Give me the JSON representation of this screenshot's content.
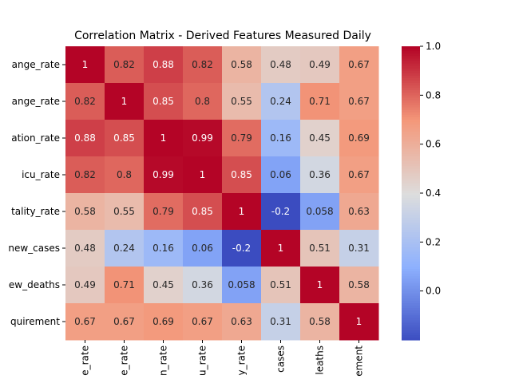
{
  "chart_data": {
    "type": "heatmap",
    "title": "Correlation Matrix - Derived Features Measured Daily",
    "row_labels": [
      "ange_rate",
      "ange_rate",
      "ation_rate",
      "icu_rate",
      "tality_rate",
      "new_cases",
      "ew_deaths",
      "quirement"
    ],
    "col_labels": [
      "e_rate",
      "e_rate",
      "n_rate",
      "u_rate",
      "y_rate",
      "cases",
      "leaths",
      "ement"
    ],
    "values": [
      [
        1,
        0.82,
        0.88,
        0.82,
        0.58,
        0.48,
        0.49,
        0.67
      ],
      [
        0.82,
        1,
        0.85,
        0.8,
        0.55,
        0.24,
        0.71,
        0.67
      ],
      [
        0.88,
        0.85,
        1,
        0.99,
        0.79,
        0.16,
        0.45,
        0.69
      ],
      [
        0.82,
        0.8,
        0.99,
        1,
        0.85,
        0.06,
        0.36,
        0.67
      ],
      [
        0.58,
        0.55,
        0.79,
        0.85,
        1,
        -0.2,
        0.058,
        0.63
      ],
      [
        0.48,
        0.24,
        0.16,
        0.06,
        -0.2,
        1,
        0.51,
        0.31
      ],
      [
        0.49,
        0.71,
        0.45,
        0.36,
        0.058,
        0.51,
        1,
        0.58
      ],
      [
        0.67,
        0.67,
        0.69,
        0.67,
        0.63,
        0.31,
        0.58,
        1
      ]
    ],
    "colormap": "coolwarm",
    "vmin": -0.2,
    "vmax": 1.0,
    "colorbar_ticks": [
      "1.0",
      "0.8",
      "0.6",
      "0.4",
      "0.2",
      "0.0"
    ],
    "annotations": true,
    "grid": false
  }
}
